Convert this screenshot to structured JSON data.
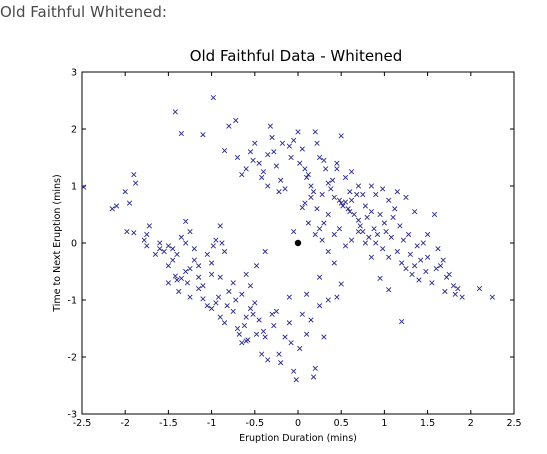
{
  "page": {
    "caption": "Old Faithful Whitened:"
  },
  "chart_data": {
    "type": "scatter",
    "title": "Old Faithful Data - Whitened",
    "xlabel": "Eruption Duration (mins)",
    "ylabel": "Time to Next Eruption (mins)",
    "xlim": [
      -2.5,
      2.5
    ],
    "ylim": [
      -3,
      3
    ],
    "xticks": [
      "-2.5",
      "-2",
      "-1.5",
      "-1",
      "-0.5",
      "0",
      "0.5",
      "1",
      "1.5",
      "2",
      "2.5"
    ],
    "yticks": [
      "-3",
      "-2",
      "-1",
      "0",
      "1",
      "2",
      "3"
    ],
    "grid": false,
    "marker": "x",
    "marker_color": "#2a2a8a",
    "center": {
      "x": 0,
      "y": 0,
      "marker": "filled-dot",
      "color": "#000000"
    },
    "points": [
      [
        -2.48,
        0.98
      ],
      [
        -2.15,
        0.6
      ],
      [
        -2.1,
        0.65
      ],
      [
        -2.0,
        0.9
      ],
      [
        -1.95,
        0.7
      ],
      [
        -1.9,
        1.2
      ],
      [
        -1.88,
        1.05
      ],
      [
        -1.98,
        0.2
      ],
      [
        -1.9,
        0.18
      ],
      [
        -1.75,
        0.15
      ],
      [
        -1.78,
        0.05
      ],
      [
        -1.72,
        0.3
      ],
      [
        -1.6,
        -0.1
      ],
      [
        -1.55,
        -0.15
      ],
      [
        -1.5,
        -0.05
      ],
      [
        -1.45,
        -0.1
      ],
      [
        -1.4,
        -0.2
      ],
      [
        -1.35,
        0.1
      ],
      [
        -1.3,
        0.38
      ],
      [
        -1.25,
        0.2
      ],
      [
        -1.3,
        0.0
      ],
      [
        -1.45,
        -0.3
      ],
      [
        -1.5,
        -0.4
      ],
      [
        -1.42,
        -0.58
      ],
      [
        -1.35,
        -0.62
      ],
      [
        -1.3,
        -0.5
      ],
      [
        -1.28,
        -0.7
      ],
      [
        -1.25,
        -0.45
      ],
      [
        -1.2,
        -0.3
      ],
      [
        -1.15,
        -0.6
      ],
      [
        -1.1,
        -0.75
      ],
      [
        -1.05,
        -0.2
      ],
      [
        -1.0,
        -0.35
      ],
      [
        -0.98,
        -0.05
      ],
      [
        -0.95,
        0.05
      ],
      [
        -0.9,
        0.3
      ],
      [
        -0.88,
        0.0
      ],
      [
        -1.2,
        -0.1
      ],
      [
        -1.15,
        -0.4
      ],
      [
        -1.4,
        -0.65
      ],
      [
        -1.5,
        -0.7
      ],
      [
        -1.38,
        -0.85
      ],
      [
        -1.25,
        -0.95
      ],
      [
        -1.1,
        -0.98
      ],
      [
        -1.05,
        -1.1
      ],
      [
        -1.0,
        -1.15
      ],
      [
        -0.95,
        -1.05
      ],
      [
        -0.92,
        -0.95
      ],
      [
        -0.9,
        -1.3
      ],
      [
        -0.85,
        -1.4
      ],
      [
        -0.82,
        -1.1
      ],
      [
        -0.8,
        -0.85
      ],
      [
        -0.75,
        -1.2
      ],
      [
        -0.72,
        -1.0
      ],
      [
        -0.7,
        -1.5
      ],
      [
        -0.68,
        -1.6
      ],
      [
        -0.65,
        -1.75
      ],
      [
        -0.62,
        -1.45
      ],
      [
        -0.6,
        -1.3
      ],
      [
        -0.58,
        -1.7
      ],
      [
        -0.55,
        -1.15
      ],
      [
        -0.52,
        -1.25
      ],
      [
        -0.5,
        -1.05
      ],
      [
        -0.48,
        -1.6
      ],
      [
        -0.45,
        -1.35
      ],
      [
        -0.42,
        -1.95
      ],
      [
        -0.4,
        -1.55
      ],
      [
        -0.38,
        -1.65
      ],
      [
        -0.35,
        -2.05
      ],
      [
        -0.3,
        -1.25
      ],
      [
        -0.28,
        -1.45
      ],
      [
        -0.25,
        -1.2
      ],
      [
        -0.22,
        -1.95
      ],
      [
        -0.2,
        -2.1
      ],
      [
        -0.15,
        -1.65
      ],
      [
        -0.1,
        -1.4
      ],
      [
        -0.08,
        -1.75
      ],
      [
        -0.05,
        -2.25
      ],
      [
        -0.02,
        -2.4
      ],
      [
        0.02,
        -1.85
      ],
      [
        0.1,
        -1.6
      ],
      [
        0.15,
        -1.35
      ],
      [
        0.18,
        -2.35
      ],
      [
        0.2,
        -2.2
      ],
      [
        0.25,
        -1.1
      ],
      [
        0.3,
        -1.65
      ],
      [
        -0.6,
        -1.72
      ],
      [
        -1.75,
        -0.05
      ],
      [
        -1.6,
        0.0
      ],
      [
        -1.65,
        -0.2
      ],
      [
        -1.42,
        2.3
      ],
      [
        -1.35,
        1.92
      ],
      [
        -1.1,
        1.9
      ],
      [
        -0.98,
        2.55
      ],
      [
        -0.85,
        1.62
      ],
      [
        -0.8,
        2.05
      ],
      [
        -0.72,
        2.15
      ],
      [
        -0.7,
        1.5
      ],
      [
        -0.65,
        1.2
      ],
      [
        -0.6,
        1.3
      ],
      [
        -0.55,
        1.6
      ],
      [
        -0.52,
        1.45
      ],
      [
        -0.5,
        1.75
      ],
      [
        -0.45,
        1.4
      ],
      [
        -0.42,
        1.15
      ],
      [
        -0.4,
        1.25
      ],
      [
        -0.35,
        1.55
      ],
      [
        -0.35,
        1.0
      ],
      [
        -0.32,
        2.05
      ],
      [
        -0.3,
        1.85
      ],
      [
        -0.28,
        1.6
      ],
      [
        -0.25,
        1.35
      ],
      [
        -0.22,
        0.9
      ],
      [
        -0.2,
        1.1
      ],
      [
        -0.15,
        0.95
      ],
      [
        -0.18,
        1.75
      ],
      [
        -0.1,
        1.7
      ],
      [
        -0.08,
        1.5
      ],
      [
        -0.05,
        1.8
      ],
      [
        0.0,
        1.95
      ],
      [
        0.02,
        1.4
      ],
      [
        0.05,
        1.65
      ],
      [
        0.08,
        1.3
      ],
      [
        0.1,
        1.15
      ],
      [
        0.12,
        1.2
      ],
      [
        0.15,
        1.0
      ],
      [
        0.18,
        0.9
      ],
      [
        0.2,
        1.95
      ],
      [
        0.22,
        1.75
      ],
      [
        0.25,
        1.5
      ],
      [
        0.28,
        0.85
      ],
      [
        0.3,
        1.45
      ],
      [
        0.32,
        1.3
      ],
      [
        0.35,
        1.05
      ],
      [
        0.38,
        0.95
      ],
      [
        0.4,
        1.1
      ],
      [
        0.42,
        0.8
      ],
      [
        0.45,
        1.4
      ],
      [
        0.48,
        0.75
      ],
      [
        0.5,
        0.7
      ],
      [
        0.52,
        0.65
      ],
      [
        0.55,
        0.72
      ],
      [
        0.58,
        0.6
      ],
      [
        0.6,
        0.55
      ],
      [
        0.5,
        1.88
      ],
      [
        0.62,
        0.75
      ],
      [
        0.65,
        0.5
      ],
      [
        0.68,
        0.85
      ],
      [
        0.7,
        0.4
      ],
      [
        0.72,
        0.3
      ],
      [
        0.75,
        0.2
      ],
      [
        0.78,
        0.65
      ],
      [
        0.8,
        0.45
      ],
      [
        0.82,
        0.1
      ],
      [
        0.85,
        0.55
      ],
      [
        0.88,
        0.25
      ],
      [
        0.9,
        0.0
      ],
      [
        0.92,
        0.15
      ],
      [
        0.95,
        0.5
      ],
      [
        0.98,
        -0.1
      ],
      [
        1.0,
        0.35
      ],
      [
        1.02,
        0.2
      ],
      [
        1.05,
        -0.25
      ],
      [
        1.08,
        0.1
      ],
      [
        1.1,
        0.45
      ],
      [
        1.12,
        0.6
      ],
      [
        1.15,
        -0.15
      ],
      [
        1.18,
        0.3
      ],
      [
        1.2,
        -0.35
      ],
      [
        1.22,
        0.05
      ],
      [
        1.25,
        -0.45
      ],
      [
        1.28,
        0.15
      ],
      [
        1.3,
        -0.2
      ],
      [
        1.32,
        -0.55
      ],
      [
        1.35,
        -0.4
      ],
      [
        1.38,
        -0.05
      ],
      [
        1.4,
        -0.65
      ],
      [
        1.42,
        -0.3
      ],
      [
        1.45,
        0.0
      ],
      [
        1.48,
        -0.5
      ],
      [
        1.5,
        -0.25
      ],
      [
        1.55,
        -0.7
      ],
      [
        1.6,
        -0.45
      ],
      [
        1.65,
        -0.4
      ],
      [
        1.7,
        -0.85
      ],
      [
        1.75,
        -0.55
      ],
      [
        1.8,
        -0.75
      ],
      [
        1.85,
        -0.8
      ],
      [
        2.1,
        -0.8
      ],
      [
        2.25,
        -0.95
      ],
      [
        1.2,
        -1.38
      ],
      [
        1.05,
        -0.82
      ],
      [
        0.95,
        -0.62
      ],
      [
        0.85,
        -0.25
      ],
      [
        0.78,
        0.0
      ],
      [
        0.7,
        0.2
      ],
      [
        0.62,
        0.05
      ],
      [
        0.55,
        -0.05
      ],
      [
        0.48,
        0.25
      ],
      [
        0.42,
        0.15
      ],
      [
        0.35,
        0.5
      ],
      [
        0.3,
        0.35
      ],
      [
        0.25,
        0.25
      ],
      [
        0.22,
        0.6
      ],
      [
        0.15,
        0.8
      ],
      [
        0.08,
        0.7
      ],
      [
        0.05,
        0.62
      ],
      [
        -0.05,
        0.2
      ],
      [
        0.12,
        0.35
      ],
      [
        0.2,
        0.15
      ],
      [
        0.28,
        0.05
      ],
      [
        0.35,
        -0.15
      ],
      [
        0.42,
        -0.35
      ],
      [
        0.45,
        -0.95
      ],
      [
        0.5,
        -0.72
      ],
      [
        0.35,
        -1.0
      ],
      [
        0.25,
        -0.6
      ],
      [
        0.1,
        -0.9
      ],
      [
        -0.1,
        -0.95
      ],
      [
        0.05,
        -1.25
      ],
      [
        -0.38,
        -0.15
      ],
      [
        -0.48,
        -0.4
      ],
      [
        -0.6,
        -0.55
      ],
      [
        -0.75,
        -0.7
      ],
      [
        -0.9,
        -0.6
      ],
      [
        -1.0,
        -0.55
      ],
      [
        -1.15,
        -0.8
      ],
      [
        -0.85,
        -0.15
      ],
      [
        -0.65,
        -0.9
      ],
      [
        -0.55,
        -0.75
      ],
      [
        1.5,
        0.15
      ],
      [
        1.58,
        0.5
      ],
      [
        1.62,
        -0.1
      ],
      [
        1.68,
        -0.3
      ],
      [
        1.72,
        -0.6
      ],
      [
        1.82,
        -0.9
      ],
      [
        1.9,
        -0.95
      ],
      [
        1.35,
        0.55
      ],
      [
        1.25,
        0.8
      ],
      [
        1.15,
        0.9
      ],
      [
        1.05,
        0.75
      ],
      [
        0.98,
        0.95
      ],
      [
        0.9,
        0.85
      ],
      [
        0.85,
        1.0
      ],
      [
        0.7,
        1.0
      ],
      [
        0.62,
        1.25
      ],
      [
        0.55,
        1.15
      ],
      [
        0.45,
        1.3
      ],
      [
        0.6,
        0.9
      ],
      [
        0.75,
        0.85
      ]
    ]
  }
}
